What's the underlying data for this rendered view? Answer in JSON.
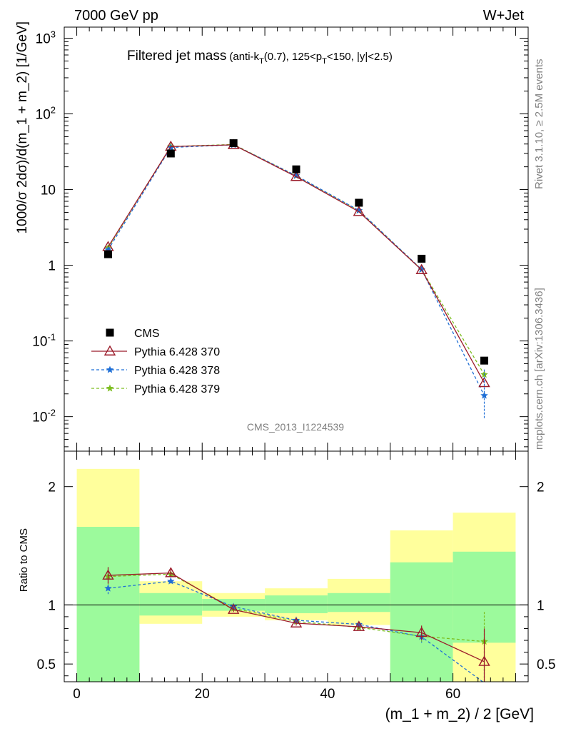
{
  "header": {
    "left": "7000 GeV pp",
    "right": "W+Jet"
  },
  "side_text": {
    "rivet": "Rivet 3.1.10, ≥ 2.5M events",
    "mcplots": "mcplots.cern.ch [arXiv:1306.3436]"
  },
  "analysis_id": "CMS_2013_I1224539",
  "plot_title": {
    "main": "Filtered jet mass",
    "cuts_prefix": "(anti-k",
    "cuts_sub": "T",
    "cuts_mid": "(0.7), 125<p",
    "cuts_sub2": "T",
    "cuts_suffix": "<150, |y|<2.5)"
  },
  "colors": {
    "cms": "#000000",
    "py370": "#9b1b2a",
    "py378": "#1f6fd6",
    "py379": "#7cbd1e",
    "band_inner": "#9cfa9c",
    "band_outer": "#ffff9c"
  },
  "chart_data": [
    {
      "type": "line",
      "title": "Filtered jet mass (anti-kT(0.7), 125<pT<150, |y|<2.5)",
      "ylabel": "1000/σ 2dσ)/d(m_1 + m_2) [1/GeV]",
      "yscale": "log",
      "ylim": [
        0.0035,
        1400
      ],
      "xlim": [
        -2,
        72
      ],
      "yticks": [
        {
          "v": 0.01,
          "base": "10",
          "exp": "-2"
        },
        {
          "v": 0.1,
          "base": "10",
          "exp": "-1"
        },
        {
          "v": 1,
          "base": "1",
          "exp": ""
        },
        {
          "v": 10,
          "base": "10",
          "exp": ""
        },
        {
          "v": 100,
          "base": "10",
          "exp": "2"
        },
        {
          "v": 1000,
          "base": "10",
          "exp": "3"
        }
      ],
      "x": [
        5,
        15,
        25,
        35,
        45,
        55,
        65
      ],
      "series": [
        {
          "name": "CMS",
          "key": "cms",
          "marker": "square",
          "values": [
            1.4,
            30,
            41,
            18.5,
            6.7,
            1.22,
            0.055
          ]
        },
        {
          "name": "Pythia 6.428 370",
          "key": "py370",
          "marker": "triangle",
          "dash": "",
          "values": [
            1.75,
            37,
            39,
            14.8,
            5.1,
            0.87,
            0.028
          ]
        },
        {
          "name": "Pythia 6.428 378",
          "key": "py378",
          "marker": "star",
          "dash": "4,3",
          "values": [
            1.6,
            36,
            39,
            15.3,
            5.3,
            0.88,
            0.019
          ]
        },
        {
          "name": "Pythia 6.428 379",
          "key": "py379",
          "marker": "star",
          "dash": "4,3",
          "values": [
            1.7,
            37,
            39.5,
            15.2,
            5.3,
            0.88,
            0.036
          ]
        }
      ],
      "legend": "left-lower"
    },
    {
      "type": "line",
      "ylabel": "Ratio to CMS",
      "xlabel": "(m_1 + m_2) / 2 [GeV]",
      "ylim": [
        0.35,
        2.3
      ],
      "xlim": [
        -2,
        72
      ],
      "xticks": [
        0,
        20,
        40,
        60
      ],
      "yticks": [
        0.5,
        1,
        2
      ],
      "bins": [
        [
          0,
          10
        ],
        [
          10,
          20
        ],
        [
          20,
          30
        ],
        [
          30,
          40
        ],
        [
          40,
          50
        ],
        [
          50,
          60
        ],
        [
          60,
          70
        ]
      ],
      "band_inner": [
        [
          0.35,
          1.66
        ],
        [
          0.91,
          1.1
        ],
        [
          0.95,
          1.05
        ],
        [
          0.93,
          1.08
        ],
        [
          0.94,
          1.1
        ],
        [
          0.35,
          1.36
        ],
        [
          0.68,
          1.45
        ]
      ],
      "band_outer": [
        [
          0.35,
          2.15
        ],
        [
          0.84,
          1.2
        ],
        [
          0.9,
          1.1
        ],
        [
          0.87,
          1.14
        ],
        [
          0.83,
          1.22
        ],
        [
          0.43,
          1.63
        ],
        [
          0.35,
          1.78
        ]
      ],
      "x": [
        5,
        15,
        25,
        35,
        45,
        55,
        65
      ],
      "series": [
        {
          "name": "Pythia 6.428 370",
          "key": "py370",
          "values": [
            1.25,
            1.27,
            0.96,
            0.845,
            0.815,
            0.765,
            0.52
          ],
          "err": [
            0.07,
            0.03,
            0.02,
            0.02,
            0.02,
            0.06,
            0.28
          ]
        },
        {
          "name": "Pythia 6.428 378",
          "key": "py378",
          "values": [
            1.14,
            1.2,
            0.985,
            0.87,
            0.835,
            0.73,
            0.34
          ],
          "err": [
            0.06,
            0.03,
            0.02,
            0.02,
            0.02,
            0.05,
            0.15
          ]
        },
        {
          "name": "Pythia 6.428 379",
          "key": "py379",
          "values": [
            1.24,
            1.26,
            0.97,
            0.86,
            0.81,
            0.735,
            0.69
          ],
          "err": [
            0.07,
            0.03,
            0.02,
            0.02,
            0.02,
            0.06,
            0.25
          ]
        }
      ]
    }
  ]
}
